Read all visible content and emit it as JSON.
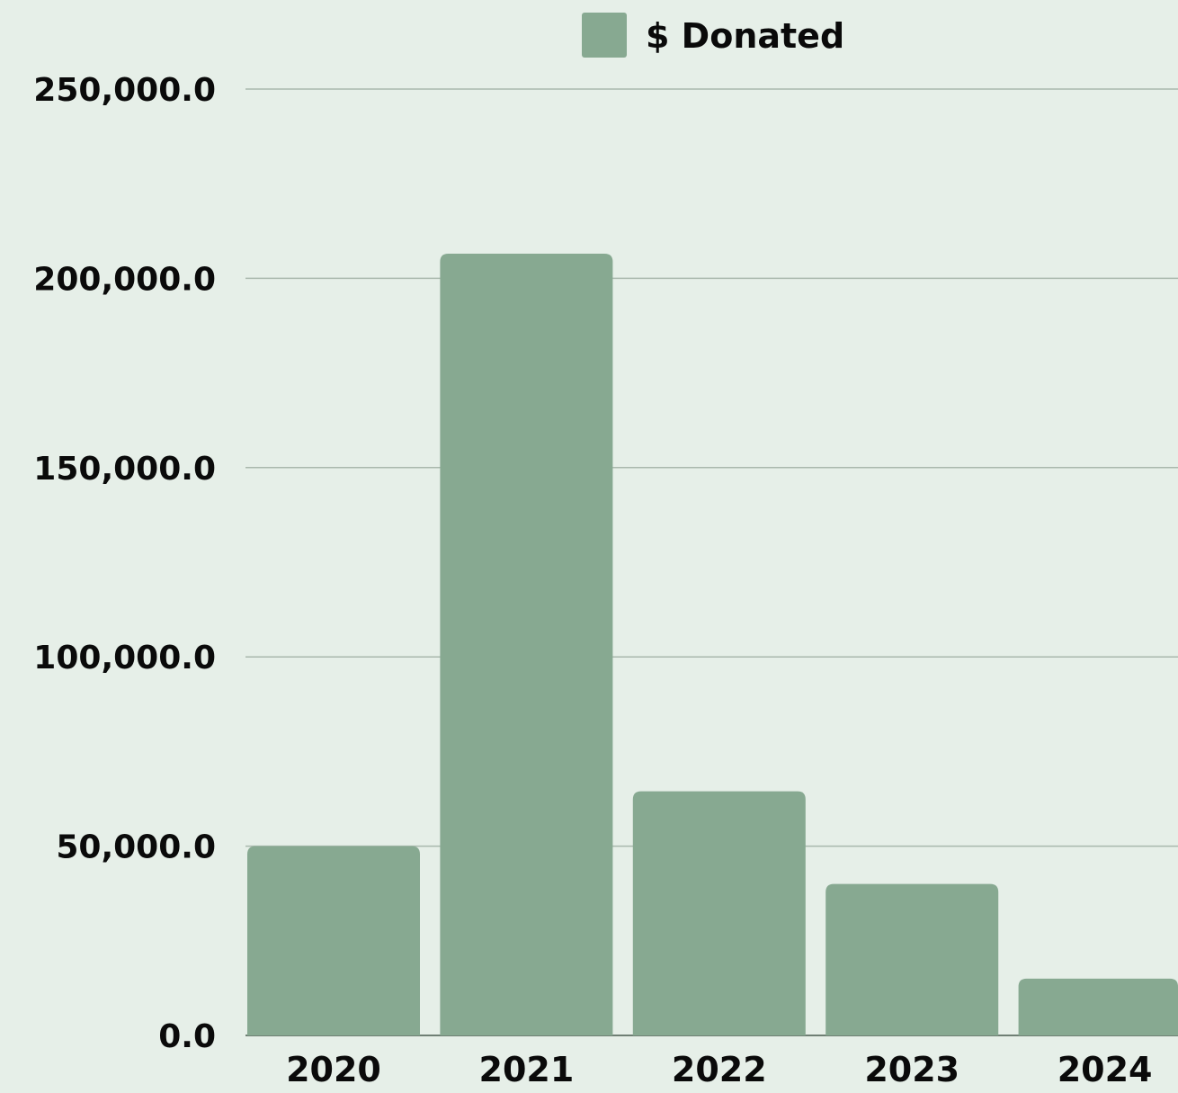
{
  "chart_data": {
    "type": "bar",
    "title": "",
    "xlabel": "",
    "ylabel": "",
    "categories": [
      "2020",
      "2021",
      "2022",
      "2023",
      "2024"
    ],
    "series": [
      {
        "name": "$ Donated",
        "values": [
          50000,
          206500,
          64500,
          40000,
          15000
        ]
      }
    ],
    "ylim": [
      0,
      250000
    ],
    "yticks": [
      0,
      50000,
      100000,
      150000,
      200000,
      250000
    ],
    "ytick_labels": [
      "0.0",
      "50,000.0",
      "100,000.0",
      "150,000.0",
      "200,000.0",
      "250,000.0"
    ],
    "grid": true,
    "legend": "top-center",
    "colors": {
      "background": "#e6efe8",
      "bar": "#87a991",
      "grid": "#a9b8ad",
      "text": "#0a0a0a"
    }
  }
}
